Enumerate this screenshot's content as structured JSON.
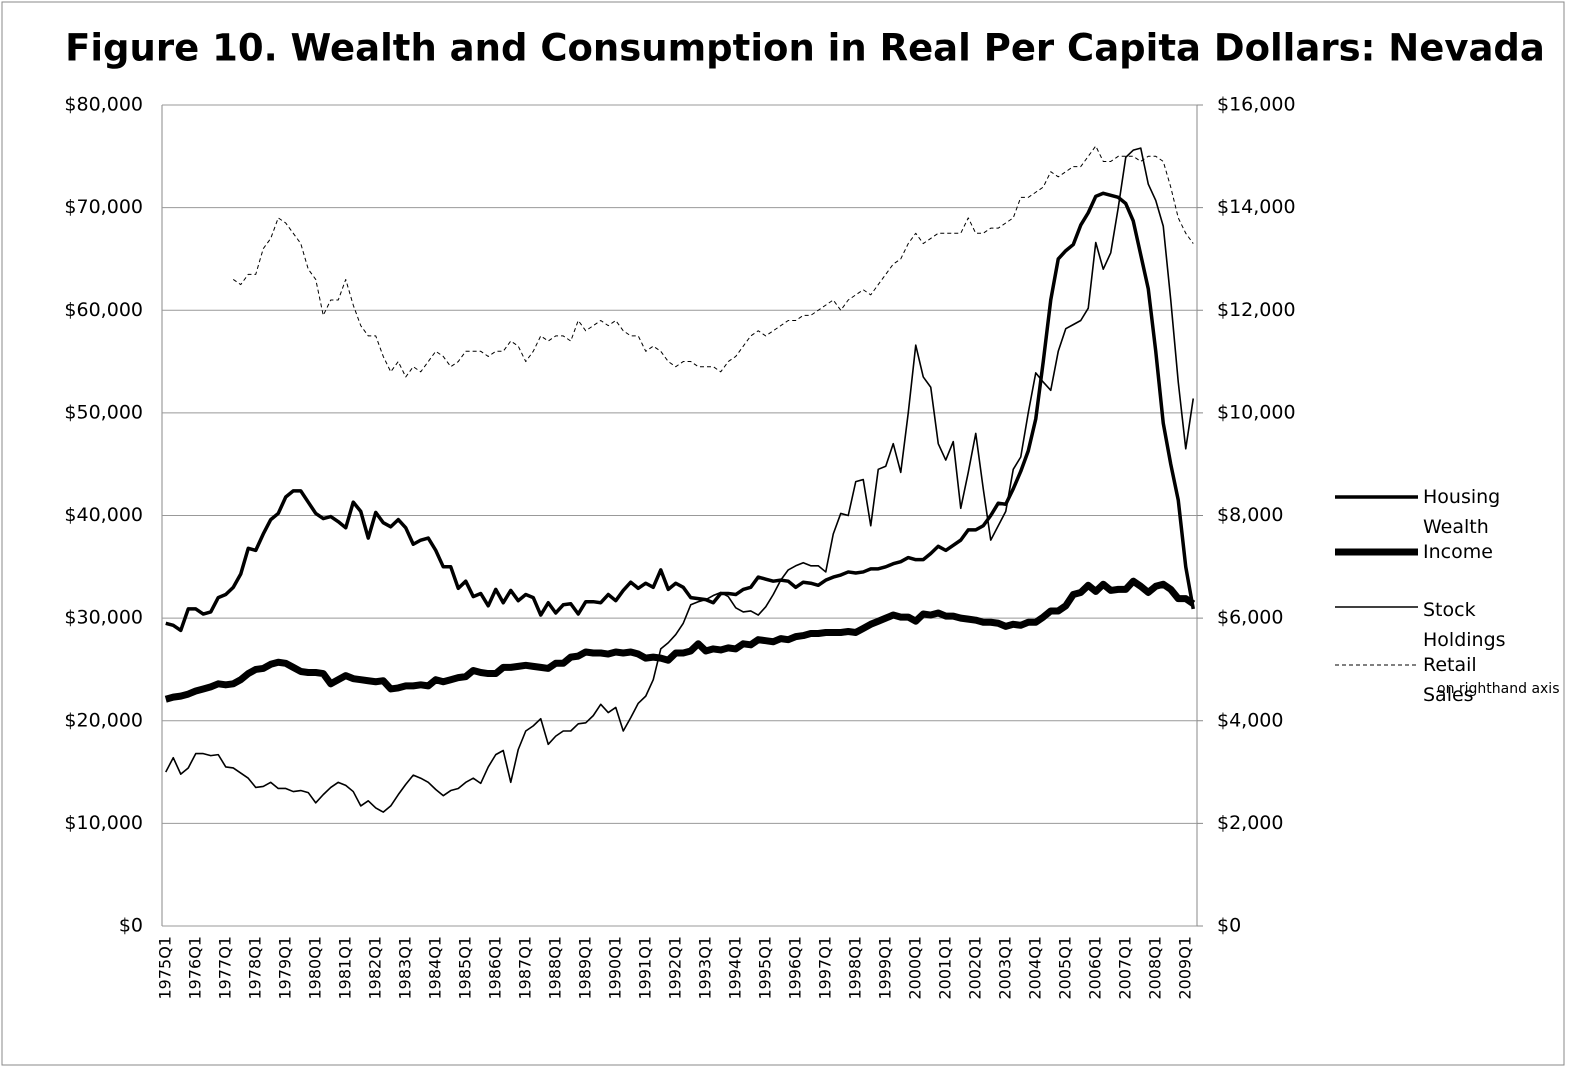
{
  "chart_data": {
    "type": "line",
    "title": "Figure 10. Wealth and Consumption in Real Per Capita Dollars: Nevada",
    "categories": [
      "1975Q1",
      null,
      null,
      null,
      "1976Q1",
      null,
      null,
      null,
      "1977Q1",
      null,
      null,
      null,
      "1978Q1",
      null,
      null,
      null,
      "1979Q1",
      null,
      null,
      null,
      "1980Q1",
      null,
      null,
      null,
      "1981Q1",
      null,
      null,
      null,
      "1982Q1",
      null,
      null,
      null,
      "1983Q1",
      null,
      null,
      null,
      "1984Q1",
      null,
      null,
      null,
      "1985Q1",
      null,
      null,
      null,
      "1986Q1",
      null,
      null,
      null,
      "1987Q1",
      null,
      null,
      null,
      "1988Q1",
      null,
      null,
      null,
      "1989Q1",
      null,
      null,
      null,
      "1990Q1",
      null,
      null,
      null,
      "1991Q1",
      null,
      null,
      null,
      "1992Q1",
      null,
      null,
      null,
      "1993Q1",
      null,
      null,
      null,
      "1994Q1",
      null,
      null,
      null,
      "1995Q1",
      null,
      null,
      null,
      "1996Q1",
      null,
      null,
      null,
      "1997Q1",
      null,
      null,
      null,
      "1998Q1",
      null,
      null,
      null,
      "1999Q1",
      null,
      null,
      null,
      "2000Q1",
      null,
      null,
      null,
      "2001Q1",
      null,
      null,
      null,
      "2002Q1",
      null,
      null,
      null,
      "2003Q1",
      null,
      null,
      null,
      "2004Q1",
      null,
      null,
      null,
      "2005Q1",
      null,
      null,
      null,
      "2006Q1",
      null,
      null,
      null,
      "2007Q1",
      null,
      null,
      null,
      "2008Q1",
      null,
      null,
      null,
      "2009Q1",
      null
    ],
    "series": [
      {
        "name": "Housing Wealth",
        "color": "#000000",
        "values": [
          29500,
          29300,
          28800,
          30900,
          30900,
          30400,
          30600,
          32000,
          32300,
          33000,
          34300,
          36800,
          36600,
          38200,
          39600,
          40200,
          41800,
          42400,
          42400,
          41300,
          40200,
          39700,
          39900,
          39400,
          38800,
          41300,
          40400,
          37800,
          40300,
          39300,
          38900,
          39600,
          38800,
          37200,
          37600,
          37800,
          36600,
          35000,
          35000,
          32900,
          33600,
          32100,
          32400,
          31200,
          32800,
          31500,
          32700,
          31700,
          32300,
          32000,
          30300,
          31500,
          30500,
          31300,
          31400,
          30400,
          31600,
          31600,
          31500,
          32300,
          31700,
          32700,
          33500,
          32900,
          33400,
          33000,
          34700,
          32800,
          33400,
          33000,
          32000,
          31900,
          31800,
          31500,
          32400,
          32400,
          32300,
          32800,
          33000,
          34000,
          33800,
          33600,
          33700,
          33600,
          33000,
          33500,
          33400,
          33200,
          33700,
          34000,
          34200,
          34500,
          34400,
          34500,
          34800,
          34800,
          35000,
          35300,
          35500,
          35900,
          35700,
          35700,
          36300,
          37000,
          36600,
          37100,
          37600,
          38600,
          38600,
          39000,
          40000,
          41200,
          41100,
          42600,
          44300,
          46300,
          49400,
          55000,
          61000,
          65000,
          65800,
          66400,
          68300,
          69500,
          71100,
          71400,
          71200,
          71000,
          70400,
          68700,
          65400,
          62100,
          56000,
          49000,
          45000,
          41500,
          35000,
          30900
        ]
      },
      {
        "name": "Income",
        "color": "#000000",
        "values": [
          22100,
          22300,
          22400,
          22600,
          22900,
          23100,
          23300,
          23600,
          23500,
          23600,
          24000,
          24600,
          25000,
          25100,
          25500,
          25700,
          25600,
          25200,
          24800,
          24700,
          24700,
          24600,
          23600,
          24000,
          24400,
          24100,
          24000,
          23900,
          23800,
          23900,
          23100,
          23200,
          23400,
          23400,
          23500,
          23400,
          24000,
          23800,
          24000,
          24200,
          24300,
          24900,
          24700,
          24600,
          24600,
          25200,
          25200,
          25300,
          25400,
          25300,
          25200,
          25100,
          25600,
          25600,
          26200,
          26300,
          26700,
          26600,
          26600,
          26500,
          26700,
          26600,
          26700,
          26500,
          26100,
          26200,
          26100,
          25900,
          26600,
          26600,
          26800,
          27500,
          26800,
          27000,
          26900,
          27100,
          27000,
          27500,
          27400,
          27900,
          27800,
          27700,
          28000,
          27900,
          28200,
          28300,
          28500,
          28500,
          28600,
          28600,
          28600,
          28700,
          28600,
          29000,
          29400,
          29700,
          30000,
          30300,
          30100,
          30100,
          29700,
          30400,
          30300,
          30500,
          30200,
          30200,
          30000,
          29900,
          29800,
          29600,
          29600,
          29500,
          29200,
          29400,
          29300,
          29600,
          29600,
          30100,
          30700,
          30700,
          31200,
          32300,
          32500,
          33200,
          32600,
          33300,
          32700,
          32800,
          32800,
          33600,
          33100,
          32500,
          33100,
          33300,
          32800,
          31900,
          31900,
          31400
        ]
      },
      {
        "name": "Stock Holdings",
        "color": "#000000",
        "values": [
          15000,
          16400,
          14800,
          15400,
          16800,
          16800,
          16600,
          16700,
          15500,
          15400,
          14900,
          14400,
          13500,
          13600,
          14000,
          13400,
          13400,
          13100,
          13200,
          13000,
          12000,
          12800,
          13500,
          14000,
          13700,
          13100,
          11700,
          12200,
          11500,
          11100,
          11700,
          12800,
          13800,
          14700,
          14400,
          14000,
          13300,
          12700,
          13200,
          13400,
          14000,
          14400,
          13900,
          15500,
          16700,
          17100,
          14000,
          17200,
          19000,
          19500,
          20200,
          17700,
          18500,
          19000,
          19000,
          19700,
          19800,
          20500,
          21600,
          20800,
          21300,
          19000,
          20300,
          21700,
          22400,
          24000,
          27000,
          27600,
          28400,
          29500,
          31300,
          31600,
          31800,
          32200,
          32500,
          32100,
          31000,
          30600,
          30700,
          30300,
          31100,
          32300,
          33700,
          34700,
          35100,
          35400,
          35100,
          35100,
          34500,
          38200,
          40200,
          40000,
          43300,
          43500,
          39000,
          44500,
          44800,
          47000,
          44200,
          50000,
          56600,
          53500,
          52500,
          47000,
          45400,
          47200,
          40700,
          44200,
          48000,
          42600,
          37600,
          39000,
          40400,
          44500,
          45700,
          50000,
          53900,
          53000,
          52200,
          56000,
          58200,
          58600,
          59000,
          60200,
          66600,
          64000,
          65600,
          70000,
          74900,
          75600,
          75800,
          72300,
          70700,
          68200,
          61000,
          53000,
          46500,
          51400
        ]
      },
      {
        "name": "Retail Sales",
        "color": "#000000",
        "axis": "y2",
        "values": [
          null,
          null,
          null,
          null,
          null,
          null,
          null,
          null,
          null,
          12600,
          12500,
          12700,
          12700,
          13200,
          13400,
          13800,
          13700,
          13500,
          13300,
          12800,
          12600,
          11900,
          12200,
          12200,
          12600,
          12100,
          11700,
          11500,
          11500,
          11100,
          10800,
          11000,
          10700,
          10900,
          10800,
          11000,
          11200,
          11100,
          10900,
          11000,
          11200,
          11200,
          11200,
          11100,
          11200,
          11200,
          11400,
          11300,
          11000,
          11200,
          11500,
          11400,
          11500,
          11500,
          11400,
          11800,
          11600,
          11700,
          11800,
          11700,
          11800,
          11600,
          11500,
          11500,
          11200,
          11300,
          11200,
          11000,
          10900,
          11000,
          11000,
          10900,
          10900,
          10900,
          10800,
          11000,
          11100,
          11300,
          11500,
          11600,
          11500,
          11600,
          11700,
          11800,
          11800,
          11900,
          11900,
          12000,
          12100,
          12200,
          12000,
          12200,
          12300,
          12400,
          12300,
          12500,
          12700,
          12900,
          13000,
          13300,
          13500,
          13300,
          13400,
          13500,
          13500,
          13500,
          13500,
          13800,
          13500,
          13500,
          13600,
          13600,
          13700,
          13800,
          14200,
          14200,
          14300,
          14400,
          14700,
          14600,
          14700,
          14800,
          14800,
          15000,
          15200,
          14900,
          14900,
          15000,
          15000,
          15000,
          14900,
          15000,
          15000,
          14900,
          14400,
          13800,
          13500,
          13300
        ]
      }
    ],
    "legend_note": "on righthand axis",
    "ylim": [
      0,
      80000
    ],
    "yticks": [
      {
        "value": 0,
        "label": "$0"
      },
      {
        "value": 10000,
        "label": "$10,000"
      },
      {
        "value": 20000,
        "label": "$20,000"
      },
      {
        "value": 30000,
        "label": "$30,000"
      },
      {
        "value": 40000,
        "label": "$40,000"
      },
      {
        "value": 50000,
        "label": "$50,000"
      },
      {
        "value": 60000,
        "label": "$60,000"
      },
      {
        "value": 70000,
        "label": "$70,000"
      },
      {
        "value": 80000,
        "label": "$80,000"
      }
    ],
    "y2lim": [
      0,
      16000
    ],
    "y2ticks": [
      {
        "value": 0,
        "label": "$0"
      },
      {
        "value": 2000,
        "label": "$2,000"
      },
      {
        "value": 4000,
        "label": "$4,000"
      },
      {
        "value": 6000,
        "label": "$6,000"
      },
      {
        "value": 8000,
        "label": "$8,000"
      },
      {
        "value": 10000,
        "label": "$10,000"
      },
      {
        "value": 12000,
        "label": "$12,000"
      },
      {
        "value": 14000,
        "label": "$14,000"
      },
      {
        "value": 16000,
        "label": "$16,000"
      }
    ],
    "grid": true,
    "legend": "right"
  }
}
